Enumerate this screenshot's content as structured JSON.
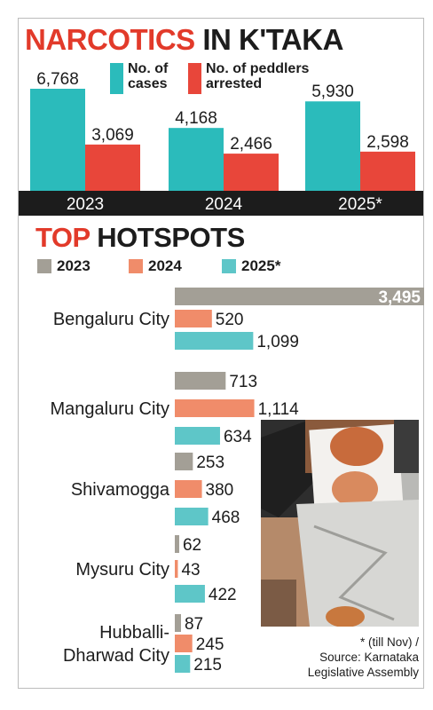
{
  "title": {
    "part1": "NARCOTICS",
    "part2": "IN K'TAKA"
  },
  "hotspots_title": {
    "part1": "TOP",
    "part2": "HOTSPOTS"
  },
  "colors": {
    "cases": "#2bbbbb",
    "peddlers": "#e8463a",
    "h2023": "#a39f96",
    "h2024": "#f08c6a",
    "h2025": "#5ec6c8",
    "axis_band": "#1c1c1c",
    "title_red": "#e23a2a"
  },
  "chart_data": [
    {
      "type": "bar",
      "title": "NARCOTICS IN K'TAKA",
      "categories": [
        "2023",
        "2024",
        "2025*"
      ],
      "series": [
        {
          "name": "No. of cases",
          "values": [
            6768,
            4168,
            5930
          ],
          "labels": [
            "6,768",
            "4,168",
            "5,930"
          ]
        },
        {
          "name": "No. of peddlers arrested",
          "values": [
            3069,
            2466,
            2598
          ],
          "labels": [
            "3,069",
            "2,466",
            "2,598"
          ]
        }
      ],
      "legend": [
        [
          "No. of",
          "cases"
        ],
        [
          "No. of peddlers",
          "arrested"
        ]
      ],
      "ylim": [
        0,
        7000
      ]
    },
    {
      "type": "bar",
      "orientation": "horizontal",
      "title": "TOP HOTSPOTS",
      "series_names": [
        "2023",
        "2024",
        "2025*"
      ],
      "categories": [
        {
          "name": [
            "Bengaluru City"
          ],
          "values": [
            3495,
            520,
            1099
          ],
          "labels": [
            "3,495",
            "520",
            "1,099"
          ]
        },
        {
          "name": [
            "Mangaluru City"
          ],
          "values": [
            713,
            1114,
            634
          ],
          "labels": [
            "713",
            "1,114",
            "634"
          ]
        },
        {
          "name": [
            "Shivamogga"
          ],
          "values": [
            253,
            380,
            468
          ],
          "labels": [
            "253",
            "380",
            "468"
          ]
        },
        {
          "name": [
            "Mysuru City"
          ],
          "values": [
            62,
            43,
            422
          ],
          "labels": [
            "62",
            "43",
            "422"
          ]
        },
        {
          "name": [
            "Hubballi-",
            "Dharwad City"
          ],
          "values": [
            87,
            245,
            215
          ],
          "labels": [
            "87",
            "245",
            "215"
          ]
        }
      ],
      "xlim": [
        0,
        3500
      ]
    }
  ],
  "note": {
    "line1": "* (till Nov) /",
    "line2": "Source: Karnataka",
    "line3": "Legislative Assembly"
  }
}
